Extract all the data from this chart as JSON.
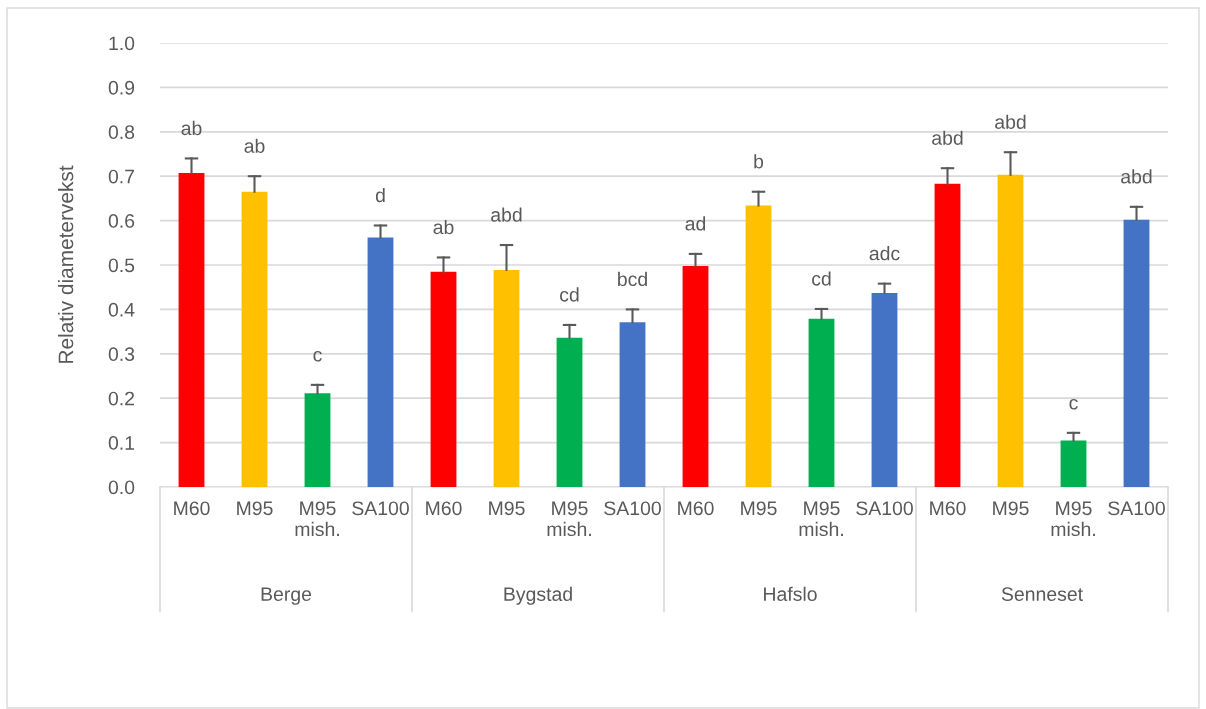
{
  "chart_data": {
    "type": "bar",
    "ylabel": "Relativ diametervekst",
    "categories": [
      "M60",
      "M95",
      "M95\nmish.",
      "SA100",
      "M60",
      "M95",
      "M95\nmish.",
      "SA100",
      "M60",
      "M95",
      "M95\nmish.",
      "SA100",
      "M60",
      "M95",
      "M95\nmish.",
      "SA100"
    ],
    "values": [
      0.707,
      0.665,
      0.211,
      0.562,
      0.485,
      0.489,
      0.336,
      0.371,
      0.498,
      0.634,
      0.379,
      0.437,
      0.683,
      0.703,
      0.105,
      0.602
    ],
    "errors": [
      [
        0.707,
        0.74
      ],
      [
        0.665,
        0.7
      ],
      [
        0.211,
        0.23
      ],
      [
        0.562,
        0.589
      ],
      [
        0.485,
        0.517
      ],
      [
        0.489,
        0.545
      ],
      [
        0.336,
        0.365
      ],
      [
        0.371,
        0.4
      ],
      [
        0.498,
        0.525
      ],
      [
        0.634,
        0.665
      ],
      [
        0.379,
        0.401
      ],
      [
        0.437,
        0.458
      ],
      [
        0.683,
        0.718
      ],
      [
        0.703,
        0.754
      ],
      [
        0.105,
        0.122
      ],
      [
        0.602,
        0.631
      ]
    ],
    "value_labels": [
      "ab",
      "ab",
      "c",
      "d",
      "ab",
      "abd",
      "cd",
      "bcd",
      "ad",
      "b",
      "cd",
      "adc",
      "abd",
      "abd",
      "c",
      "abd"
    ],
    "colors": [
      "#ff0000",
      "#ffc000",
      "#00b050",
      "#4472c4",
      "#ff0000",
      "#ffc000",
      "#00b050",
      "#4472c4",
      "#ff0000",
      "#ffc000",
      "#00b050",
      "#4472c4",
      "#ff0000",
      "#ffc000",
      "#00b050",
      "#4472c4"
    ],
    "annotations": [
      "Berge",
      "Bygstad",
      "Hafslo",
      "Senneset"
    ],
    "ylim": [
      0,
      1.0
    ],
    "yticks": [
      {
        "value": 0,
        "label": "0.0"
      },
      {
        "value": 0.1,
        "label": "0.1"
      },
      {
        "value": 0.2,
        "label": "0.2"
      },
      {
        "value": 0.3,
        "label": "0.3"
      },
      {
        "value": 0.4,
        "label": "0.4"
      },
      {
        "value": 0.5,
        "label": "0.5"
      },
      {
        "value": 0.6,
        "label": "0.6"
      },
      {
        "value": 0.7,
        "label": "0.7"
      },
      {
        "value": 0.8,
        "label": "0.8"
      },
      {
        "value": 0.9,
        "label": "0.9"
      },
      {
        "value": 1.0,
        "label": "1.0"
      }
    ],
    "grid": "y",
    "legend": false
  }
}
